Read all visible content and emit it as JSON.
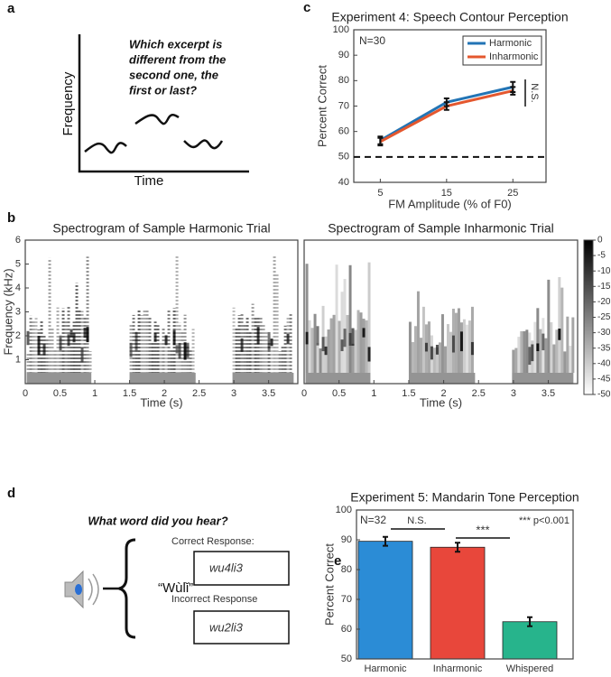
{
  "panel_labels": [
    "a",
    "b",
    "c",
    "d",
    "e"
  ],
  "panel_a": {
    "question": [
      "Which excerpt is",
      "different from the",
      "second one, the",
      "first or last?"
    ],
    "xlabel": "Time",
    "ylabel": "Frequency"
  },
  "panel_d": {
    "question": "What word did you hear?",
    "word": "“Wùlǐ”",
    "correct_label": "Correct Response:",
    "correct_answer": "wu4li3",
    "incorrect_label": "Incorrect Response",
    "incorrect_answer": "wu2li3"
  },
  "chart_data": [
    {
      "type": "line",
      "title": "Experiment 4: Speech Contour Perception",
      "xlabel": "FM Amplitude (% of F0)",
      "ylabel": "Percent Correct",
      "x": [
        5,
        15,
        25
      ],
      "xlim": [
        1,
        30
      ],
      "xticks": [
        5,
        15,
        25
      ],
      "ylim": [
        40,
        100
      ],
      "yticks": [
        40,
        50,
        60,
        70,
        80,
        90,
        100
      ],
      "hline": 50,
      "legend": "upper right",
      "series": [
        {
          "name": "Harmonic",
          "color": "#2274b5",
          "values": [
            56.5,
            71.5,
            77.5
          ],
          "errors": [
            1.5,
            1.5,
            2
          ]
        },
        {
          "name": "Inharmonic",
          "color": "#e4572e",
          "values": [
            56,
            70,
            76
          ],
          "errors": [
            1.5,
            1.5,
            1.5
          ]
        }
      ],
      "annotations": [
        "N=30",
        "N.S."
      ]
    },
    {
      "type": "spectrogram",
      "title": "Spectrogram of Sample Harmonic Trial",
      "xlabel": "Time (s)",
      "ylabel": "Frequency (kHz)",
      "xlim": [
        0,
        3.92
      ],
      "xticks": [
        0,
        0.5,
        1,
        1.5,
        2,
        2.5,
        3,
        3.5
      ],
      "ylim": [
        0,
        6
      ],
      "yticks": [
        1,
        2,
        3,
        4,
        5,
        6
      ]
    },
    {
      "type": "spectrogram",
      "title": "Spectrogram of Sample Inharmonic Trial",
      "xlabel": "Time (s)",
      "xlim": [
        0,
        3.92
      ],
      "xticks": [
        0,
        0.5,
        1,
        1.5,
        2,
        2.5,
        3,
        3.5
      ],
      "ylim": [
        0,
        6
      ],
      "colorbar": {
        "lim": [
          -50,
          0
        ],
        "ticks": [
          0,
          -5,
          -10,
          -15,
          -20,
          -25,
          -30,
          -35,
          -40,
          -45,
          -50
        ]
      }
    },
    {
      "type": "bar",
      "title": "Experiment 5: Mandarin Tone Perception",
      "ylabel": "Percent Correct",
      "categories": [
        "Harmonic",
        "Inharmonic",
        "Whispered"
      ],
      "values": [
        89.5,
        87.5,
        62.5
      ],
      "errors": [
        1.5,
        1.5,
        1.5
      ],
      "colors": [
        "#2b8cd6",
        "#e8473b",
        "#27b48c"
      ],
      "ylim": [
        50,
        100
      ],
      "yticks": [
        50,
        60,
        70,
        80,
        90,
        100
      ],
      "annotations": [
        "N=32",
        "N.S.",
        "***",
        "*** p<0.001"
      ]
    }
  ]
}
